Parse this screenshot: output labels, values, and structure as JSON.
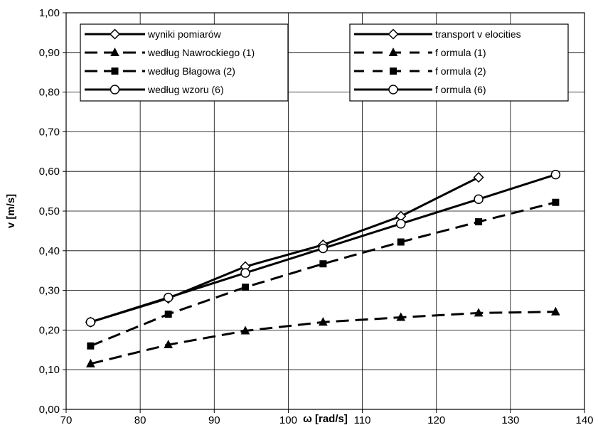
{
  "chart_data": {
    "type": "line",
    "xlabel": "ω [rad/s]",
    "ylabel": "v [m/s]",
    "xlim": [
      70,
      140
    ],
    "ylim": [
      0,
      1
    ],
    "xticks": [
      "70",
      "80",
      "90",
      "100",
      "110",
      "120",
      "130",
      "140"
    ],
    "yticks": [
      "0,00",
      "0,10",
      "0,20",
      "0,30",
      "0,40",
      "0,50",
      "0,60",
      "0,70",
      "0,80",
      "0,90",
      "1,00"
    ],
    "grid": true,
    "series": [
      {
        "name": "wyniki pomiarów",
        "name_en": "transport v elocities",
        "marker": "diamond",
        "dash": "solid",
        "points": [
          [
            73.3,
            0.22
          ],
          [
            83.8,
            0.28
          ],
          [
            94.2,
            0.36
          ],
          [
            104.7,
            0.415
          ],
          [
            115.2,
            0.487
          ],
          [
            125.7,
            0.585
          ]
        ]
      },
      {
        "name": "według  Nawrockiego (1)",
        "name_en": "f ormula (1)",
        "marker": "triangle",
        "dash": "dashed",
        "points": [
          [
            73.3,
            0.115
          ],
          [
            83.8,
            0.163
          ],
          [
            94.2,
            0.198
          ],
          [
            104.7,
            0.22
          ],
          [
            115.2,
            0.232
          ],
          [
            125.7,
            0.243
          ],
          [
            136.1,
            0.246
          ]
        ]
      },
      {
        "name": "według  Błagowa (2)",
        "name_en": "f ormula (2)",
        "marker": "square",
        "dash": "dashed",
        "points": [
          [
            73.3,
            0.16
          ],
          [
            83.8,
            0.24
          ],
          [
            94.2,
            0.308
          ],
          [
            104.7,
            0.367
          ],
          [
            115.2,
            0.422
          ],
          [
            125.7,
            0.473
          ],
          [
            136.1,
            0.522
          ]
        ]
      },
      {
        "name": "według wzoru (6)",
        "name_en": "f ormula (6)",
        "marker": "circle",
        "dash": "solid",
        "points": [
          [
            73.3,
            0.22
          ],
          [
            83.8,
            0.282
          ],
          [
            94.2,
            0.344
          ],
          [
            104.7,
            0.406
          ],
          [
            115.2,
            0.468
          ],
          [
            125.7,
            0.53
          ],
          [
            136.1,
            0.592
          ]
        ]
      }
    ],
    "legends": [
      "top-left",
      "top-right"
    ]
  }
}
